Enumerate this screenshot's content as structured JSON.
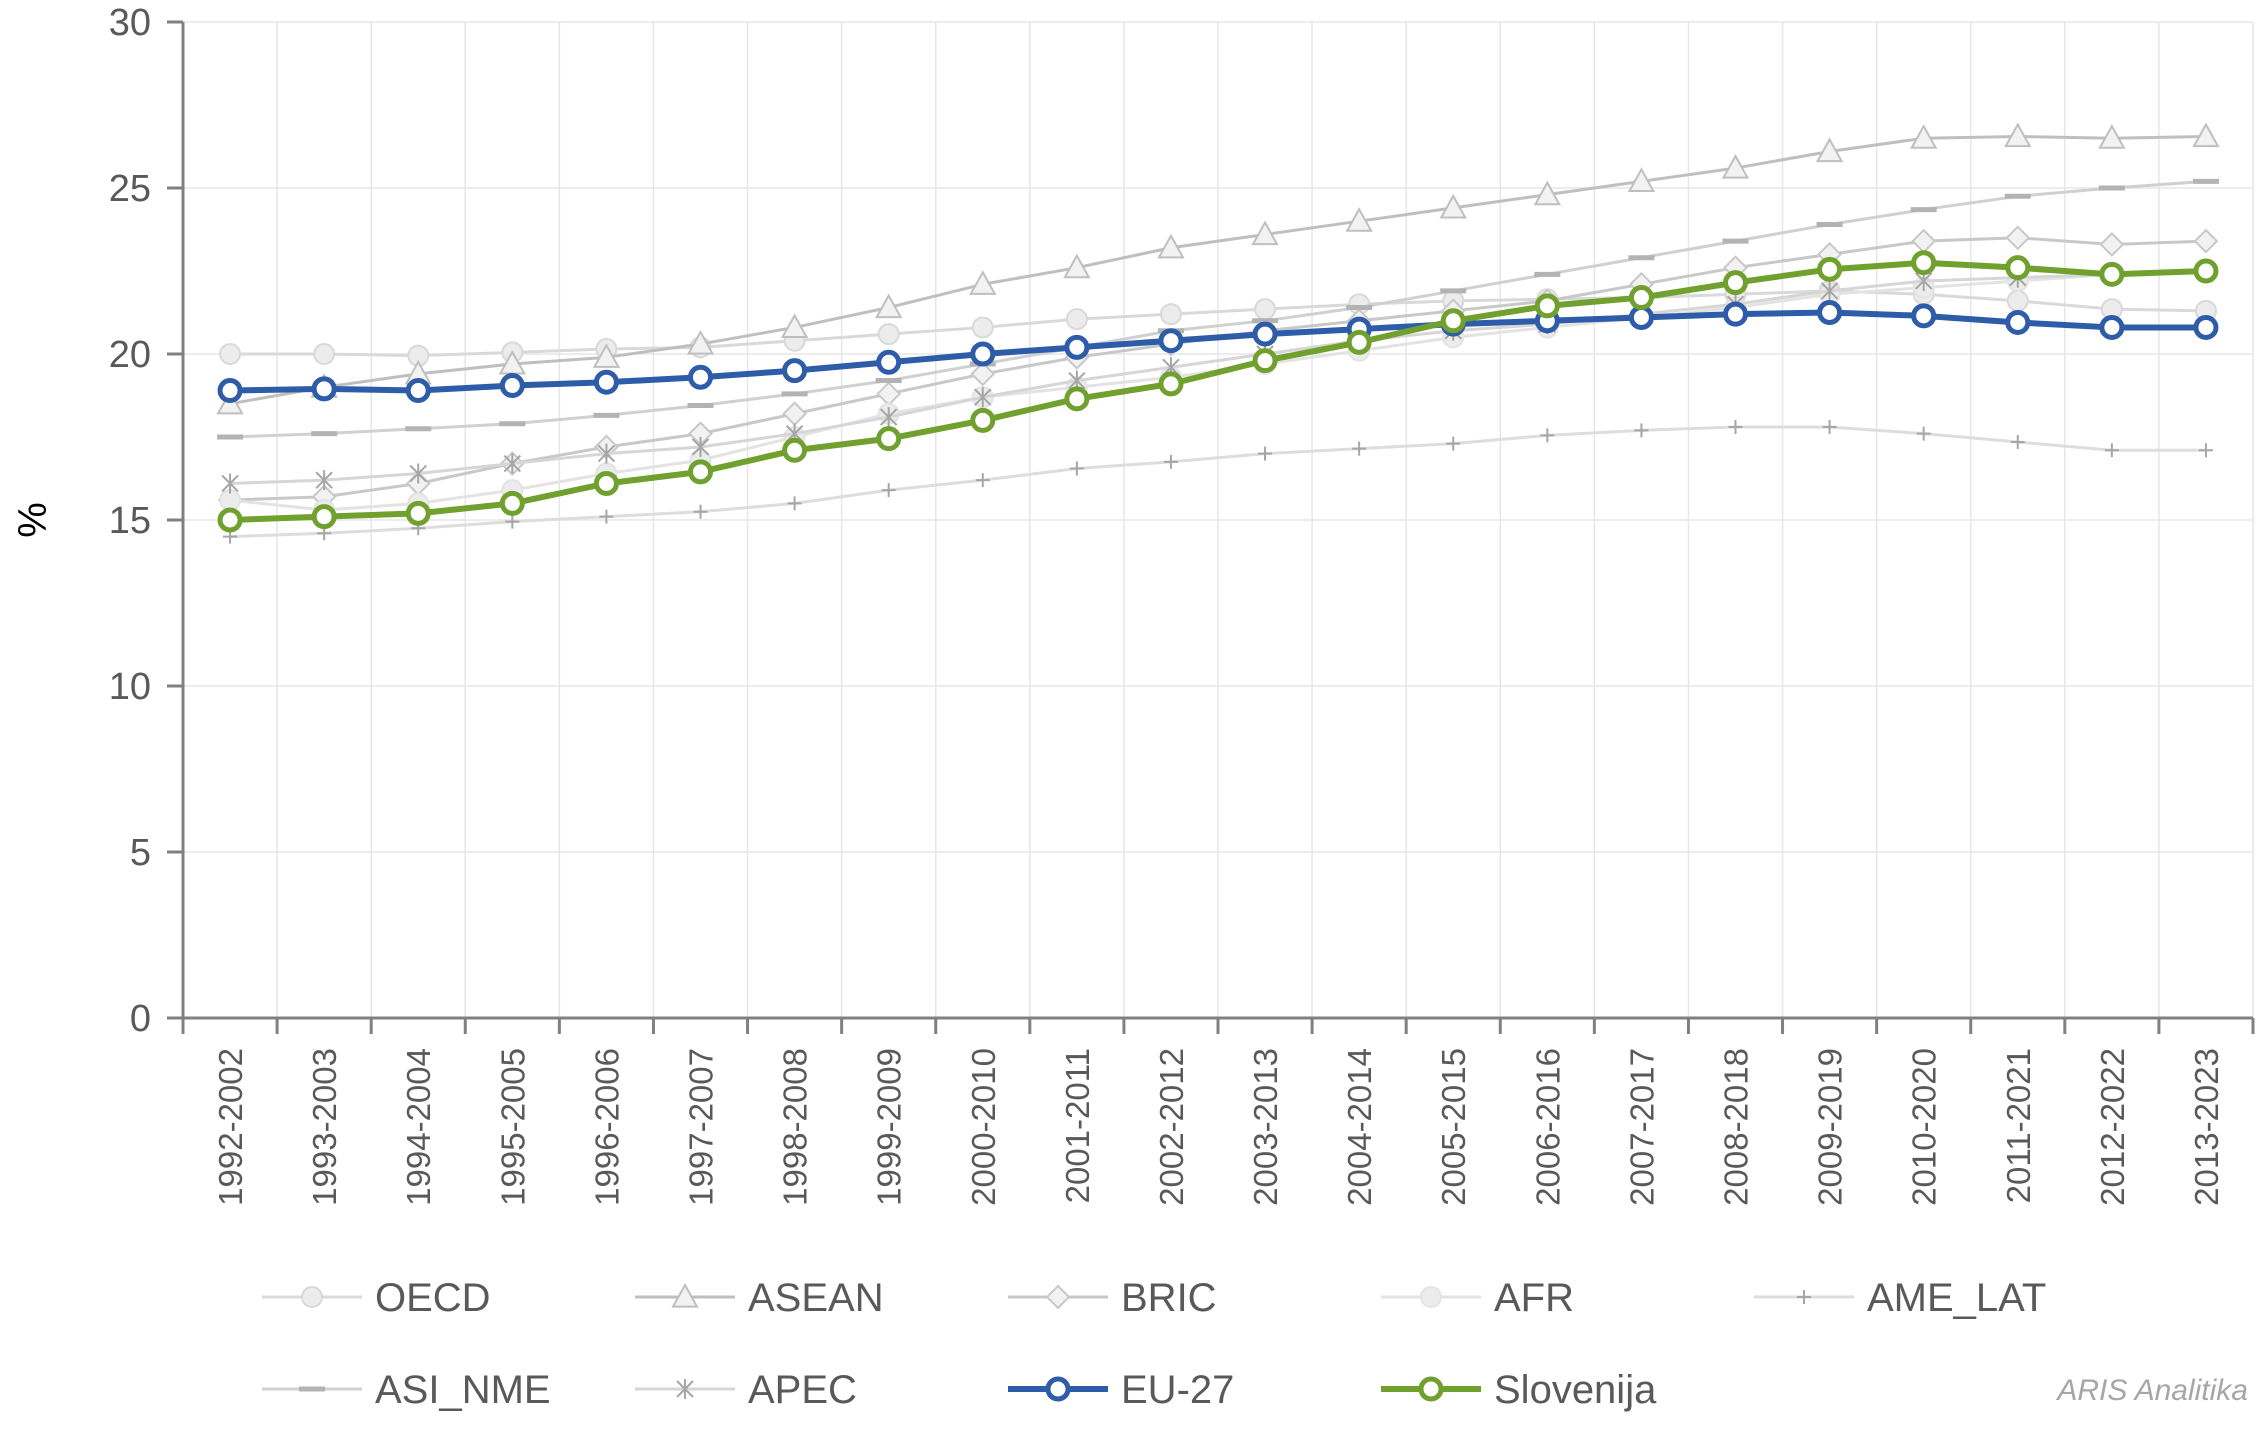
{
  "chart_data": {
    "type": "line",
    "ylabel": "%",
    "ylim": [
      0,
      30
    ],
    "yticks": [
      0,
      5,
      10,
      15,
      20,
      25,
      30
    ],
    "grid": true,
    "legend_position": "bottom",
    "categories": [
      "1992-2002",
      "1993-2003",
      "1994-2004",
      "1995-2005",
      "1996-2006",
      "1997-2007",
      "1998-2008",
      "1999-2009",
      "2000-2010",
      "2001-2011",
      "2002-2012",
      "2003-2013",
      "2004-2014",
      "2005-2015",
      "2006-2016",
      "2007-2017",
      "2008-2018",
      "2009-2019",
      "2010-2020",
      "2011-2021",
      "2012-2022",
      "2013-2023"
    ],
    "series": [
      {
        "name": "OECD",
        "color": "#d9d9d9",
        "marker": "circle",
        "values": [
          20.0,
          20.0,
          19.95,
          20.05,
          20.15,
          20.2,
          20.4,
          20.6,
          20.8,
          21.05,
          21.2,
          21.35,
          21.5,
          21.6,
          21.65,
          21.7,
          21.8,
          21.9,
          21.8,
          21.6,
          21.35,
          21.3
        ]
      },
      {
        "name": "ASEAN",
        "color": "#bfbfbf",
        "marker": "triangle",
        "values": [
          18.5,
          19.0,
          19.4,
          19.7,
          19.9,
          20.3,
          20.8,
          21.4,
          22.1,
          22.6,
          23.2,
          23.6,
          24.0,
          24.4,
          24.8,
          25.2,
          25.6,
          26.1,
          26.5,
          26.55,
          26.5,
          26.55
        ]
      },
      {
        "name": "BRIC",
        "color": "#c8c8c8",
        "marker": "diamond",
        "values": [
          15.6,
          15.7,
          16.1,
          16.7,
          17.2,
          17.6,
          18.2,
          18.8,
          19.4,
          19.9,
          20.3,
          20.7,
          21.0,
          21.3,
          21.6,
          22.1,
          22.6,
          23.0,
          23.4,
          23.5,
          23.3,
          23.4
        ]
      },
      {
        "name": "AFR",
        "color": "#e3e3e3",
        "marker": "circle",
        "values": [
          15.6,
          15.3,
          15.5,
          15.9,
          16.4,
          16.8,
          17.5,
          18.2,
          18.7,
          19.0,
          19.3,
          19.7,
          20.1,
          20.5,
          20.8,
          21.1,
          21.4,
          21.8,
          22.0,
          22.2,
          22.4,
          22.5
        ]
      },
      {
        "name": "AME_LAT",
        "color": "#dddddd",
        "marker": "plus",
        "values": [
          14.5,
          14.6,
          14.75,
          14.95,
          15.1,
          15.25,
          15.5,
          15.9,
          16.2,
          16.55,
          16.75,
          17.0,
          17.15,
          17.3,
          17.55,
          17.7,
          17.8,
          17.8,
          17.6,
          17.35,
          17.1,
          17.1
        ]
      },
      {
        "name": "ASI_NME",
        "color": "#d0d0d0",
        "marker": "dash",
        "values": [
          17.5,
          17.6,
          17.75,
          17.9,
          18.15,
          18.45,
          18.8,
          19.2,
          19.7,
          20.2,
          20.7,
          21.0,
          21.4,
          21.9,
          22.4,
          22.9,
          23.4,
          23.9,
          24.35,
          24.75,
          25.0,
          25.2
        ]
      },
      {
        "name": "APEC",
        "color": "#d6d6d6",
        "marker": "star",
        "values": [
          16.1,
          16.2,
          16.4,
          16.7,
          17.0,
          17.2,
          17.6,
          18.1,
          18.7,
          19.2,
          19.6,
          20.0,
          20.4,
          20.7,
          20.9,
          21.2,
          21.5,
          21.9,
          22.2,
          22.3,
          22.4,
          22.5
        ]
      },
      {
        "name": "EU-27",
        "color": "#2e5ca8",
        "marker": "circle",
        "values": [
          18.9,
          18.95,
          18.9,
          19.05,
          19.15,
          19.3,
          19.5,
          19.75,
          20.0,
          20.2,
          20.4,
          20.6,
          20.75,
          20.9,
          21.0,
          21.1,
          21.2,
          21.25,
          21.15,
          20.95,
          20.8,
          20.8
        ]
      },
      {
        "name": "Slovenija",
        "color": "#70a12e",
        "marker": "circle",
        "values": [
          15.0,
          15.1,
          15.2,
          15.5,
          16.1,
          16.45,
          17.1,
          17.45,
          18.0,
          18.65,
          19.1,
          19.8,
          20.35,
          21.0,
          21.45,
          21.7,
          22.15,
          22.55,
          22.75,
          22.6,
          22.4,
          22.5
        ]
      }
    ],
    "watermark": "ARIS Analitika"
  }
}
